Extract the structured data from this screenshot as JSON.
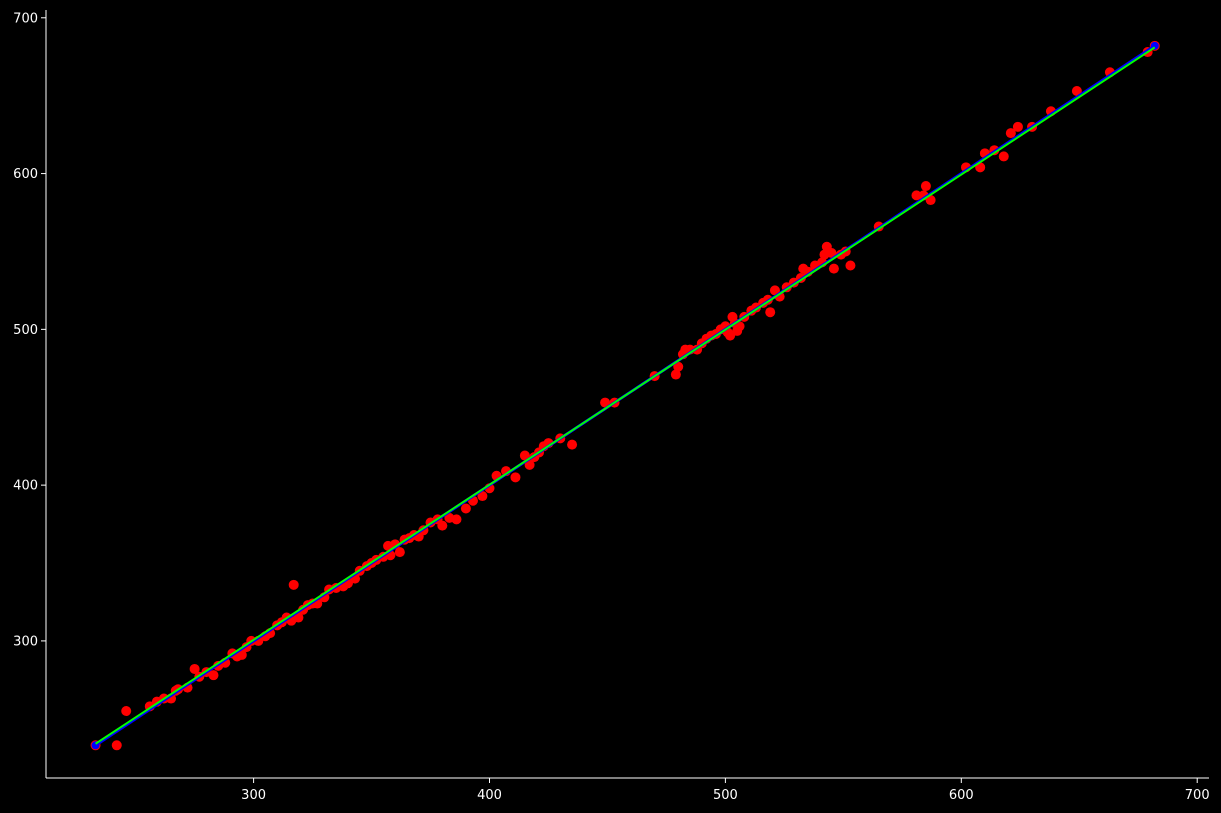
{
  "chart_data": {
    "type": "scatter",
    "title": "",
    "xlabel": "",
    "ylabel": "",
    "xlim": [
      212,
      705
    ],
    "ylim": [
      212,
      705
    ],
    "x_ticks": [
      300,
      400,
      500,
      600,
      700
    ],
    "y_ticks": [
      300,
      400,
      500,
      600,
      700
    ],
    "grid": false,
    "legend": "none",
    "background": "#000000",
    "axis_color": "#ffffff",
    "series": [
      {
        "kind": "scatter",
        "color": "#ff0000",
        "x": [
          233,
          242,
          246,
          256,
          259,
          262,
          265,
          267,
          268,
          272,
          275,
          277,
          280,
          283,
          285,
          288,
          291,
          293,
          295,
          297,
          299,
          302,
          305,
          307,
          310,
          312,
          314,
          316,
          317,
          319,
          321,
          323,
          325,
          327,
          330,
          332,
          335,
          338,
          340,
          343,
          345,
          348,
          350,
          352,
          355,
          357,
          358,
          360,
          362,
          364,
          366,
          368,
          370,
          372,
          375,
          378,
          380,
          383,
          386,
          390,
          393,
          397,
          400,
          403,
          407,
          411,
          415,
          417,
          419,
          421,
          423,
          425,
          430,
          435,
          449,
          453,
          470,
          479,
          480,
          482,
          483,
          485,
          488,
          490,
          492,
          494,
          496,
          498,
          500,
          501,
          502,
          503,
          504,
          505,
          506,
          508,
          511,
          513,
          516,
          518,
          519,
          521,
          523,
          526,
          529,
          532,
          533,
          535,
          538,
          541,
          542,
          543,
          545,
          546,
          549,
          551,
          553,
          565,
          581,
          584,
          585,
          587,
          602,
          608,
          610,
          614,
          618,
          621,
          624,
          630,
          638,
          649,
          663,
          679,
          682
        ],
        "y": [
          233,
          233,
          255,
          258,
          261,
          263,
          263,
          268,
          269,
          270,
          282,
          277,
          280,
          278,
          284,
          286,
          292,
          290,
          291,
          296,
          300,
          300,
          303,
          305,
          310,
          312,
          315,
          313,
          336,
          315,
          320,
          323,
          324,
          324,
          328,
          333,
          334,
          335,
          337,
          340,
          345,
          348,
          350,
          352,
          354,
          361,
          355,
          362,
          357,
          365,
          366,
          368,
          367,
          371,
          376,
          378,
          374,
          379,
          378,
          385,
          390,
          393,
          398,
          406,
          409,
          405,
          419,
          413,
          418,
          421,
          425,
          427,
          430,
          426,
          453,
          453,
          470,
          471,
          476,
          484,
          487,
          487,
          487,
          491,
          494,
          496,
          497,
          500,
          502,
          498,
          496,
          508,
          504,
          499,
          502,
          508,
          512,
          514,
          517,
          519,
          511,
          525,
          521,
          527,
          530,
          533,
          539,
          537,
          541,
          543,
          548,
          553,
          549,
          539,
          548,
          550,
          541,
          566,
          586,
          586,
          592,
          583,
          604,
          604,
          613,
          615,
          611,
          626,
          630,
          630,
          640,
          653,
          665,
          678,
          682
        ]
      },
      {
        "kind": "line",
        "color": "#0000ff",
        "x": [
          233,
          682
        ],
        "y": [
          233,
          682
        ]
      },
      {
        "kind": "line",
        "color": "#00ff00",
        "x": [
          233,
          682
        ],
        "y": [
          234,
          681
        ]
      }
    ]
  }
}
